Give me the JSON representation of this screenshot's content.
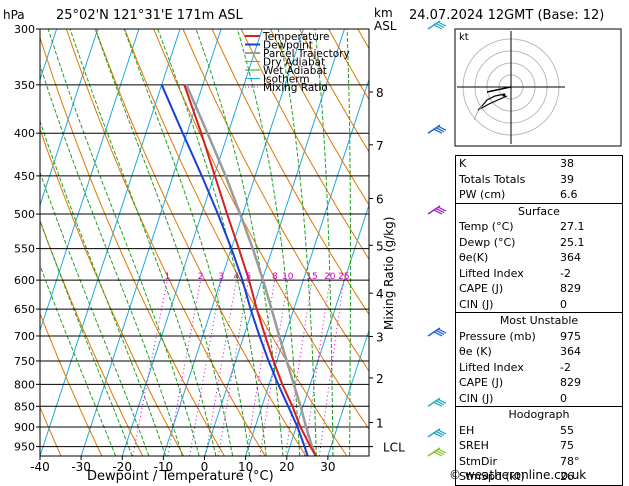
{
  "header": {
    "left": "25°02'N  121°31'E  171m  ASL",
    "right": "24.07.2024  12GMT  (Base: 12)",
    "hpa": "hPa",
    "km": "km",
    "asl": "ASL"
  },
  "colors": {
    "temperature": "#d42020",
    "dewpoint": "#1a3fd6",
    "parcel": "#9a9a9a",
    "dry_adiabat": "#e07800",
    "wet_adiabat": "#1fa01f",
    "isotherm": "#20a8e0",
    "mixing_ratio": "#cc00cc"
  },
  "chart_data": {
    "type": "line",
    "title": "",
    "xlabel": "Dewpoint / Temperature (°C)",
    "ylabel": "hPa",
    "mixing_label": "Mixing Ratio (g/kg)",
    "xlim": [
      -40,
      40
    ],
    "x_ticks": [
      -40,
      -30,
      -20,
      -10,
      0,
      10,
      20,
      30
    ],
    "pressure_levels": [
      300,
      350,
      400,
      450,
      500,
      550,
      600,
      650,
      700,
      750,
      800,
      850,
      900,
      950
    ],
    "km_ticks": [
      {
        "label": "8",
        "p": 357
      },
      {
        "label": "7",
        "p": 413
      },
      {
        "label": "6",
        "p": 479
      },
      {
        "label": "5",
        "p": 545
      },
      {
        "label": "4",
        "p": 622
      },
      {
        "label": "3",
        "p": 701
      },
      {
        "label": "2",
        "p": 786
      },
      {
        "label": "1",
        "p": 889
      },
      {
        "label": "LCL",
        "p": 950
      }
    ],
    "mixing_ratio_labels": [
      "1",
      "2",
      "3",
      "4",
      "5",
      "8",
      "10",
      "15",
      "20",
      "25"
    ],
    "legend": [
      "Temperature",
      "Dewpoint",
      "Parcel Trajectory",
      "Dry Adiabat",
      "Wet Adiabat",
      "Isotherm",
      "Mixing Ratio"
    ],
    "series": [
      {
        "name": "Temperature",
        "points": [
          [
            975,
            27.1
          ],
          [
            950,
            25.0
          ],
          [
            900,
            21.0
          ],
          [
            850,
            17.4
          ],
          [
            800,
            13.2
          ],
          [
            750,
            9.2
          ],
          [
            700,
            5.2
          ],
          [
            650,
            1.0
          ],
          [
            600,
            -3.2
          ],
          [
            550,
            -8.2
          ],
          [
            500,
            -13.8
          ],
          [
            450,
            -19.8
          ],
          [
            400,
            -26.5
          ],
          [
            350,
            -34.5
          ]
        ]
      },
      {
        "name": "Dewpoint",
        "points": [
          [
            975,
            25.1
          ],
          [
            950,
            23.6
          ],
          [
            900,
            20.3
          ],
          [
            850,
            16.4
          ],
          [
            800,
            12.2
          ],
          [
            750,
            8.0
          ],
          [
            700,
            3.8
          ],
          [
            650,
            -0.5
          ],
          [
            600,
            -4.8
          ],
          [
            550,
            -10.0
          ],
          [
            500,
            -16.0
          ],
          [
            450,
            -23.0
          ],
          [
            400,
            -31.0
          ],
          [
            350,
            -40.0
          ]
        ]
      },
      {
        "name": "Parcel Trajectory",
        "points": [
          [
            975,
            27.1
          ],
          [
            950,
            25.4
          ],
          [
            900,
            22.4
          ],
          [
            850,
            19.4
          ],
          [
            800,
            16.0
          ],
          [
            750,
            12.4
          ],
          [
            700,
            8.6
          ],
          [
            650,
            4.6
          ],
          [
            600,
            0.2
          ],
          [
            550,
            -4.8
          ],
          [
            500,
            -10.6
          ],
          [
            450,
            -17.2
          ],
          [
            400,
            -25.0
          ],
          [
            350,
            -34.0
          ]
        ]
      }
    ]
  },
  "hodograph": {
    "unit": "kt"
  },
  "indices": {
    "rows": [
      {
        "k": "K",
        "v": "38"
      },
      {
        "k": "Totals Totals",
        "v": "39"
      },
      {
        "k": "PW (cm)",
        "v": "6.6"
      }
    ],
    "surface": {
      "title": "Surface",
      "rows": [
        {
          "k": "Temp (°C)",
          "v": "27.1"
        },
        {
          "k": "Dewp (°C)",
          "v": "25.1"
        },
        {
          "k": "θe(K)",
          "v": "364"
        },
        {
          "k": "Lifted Index",
          "v": "-2"
        },
        {
          "k": "CAPE (J)",
          "v": "829"
        },
        {
          "k": "CIN (J)",
          "v": "0"
        }
      ]
    },
    "most_unstable": {
      "title": "Most Unstable",
      "rows": [
        {
          "k": "Pressure (mb)",
          "v": "975"
        },
        {
          "k": "θe (K)",
          "v": "364"
        },
        {
          "k": "Lifted Index",
          "v": "-2"
        },
        {
          "k": "CAPE (J)",
          "v": "829"
        },
        {
          "k": "CIN (J)",
          "v": "0"
        }
      ]
    },
    "hodograph": {
      "title": "Hodograph",
      "rows": [
        {
          "k": "EH",
          "v": "55"
        },
        {
          "k": "SREH",
          "v": "75"
        },
        {
          "k": "StmDir",
          "v": "78°"
        },
        {
          "k": "StmSpd (kt)",
          "v": "26"
        }
      ]
    }
  },
  "credit": "© weatheronline.co.uk"
}
